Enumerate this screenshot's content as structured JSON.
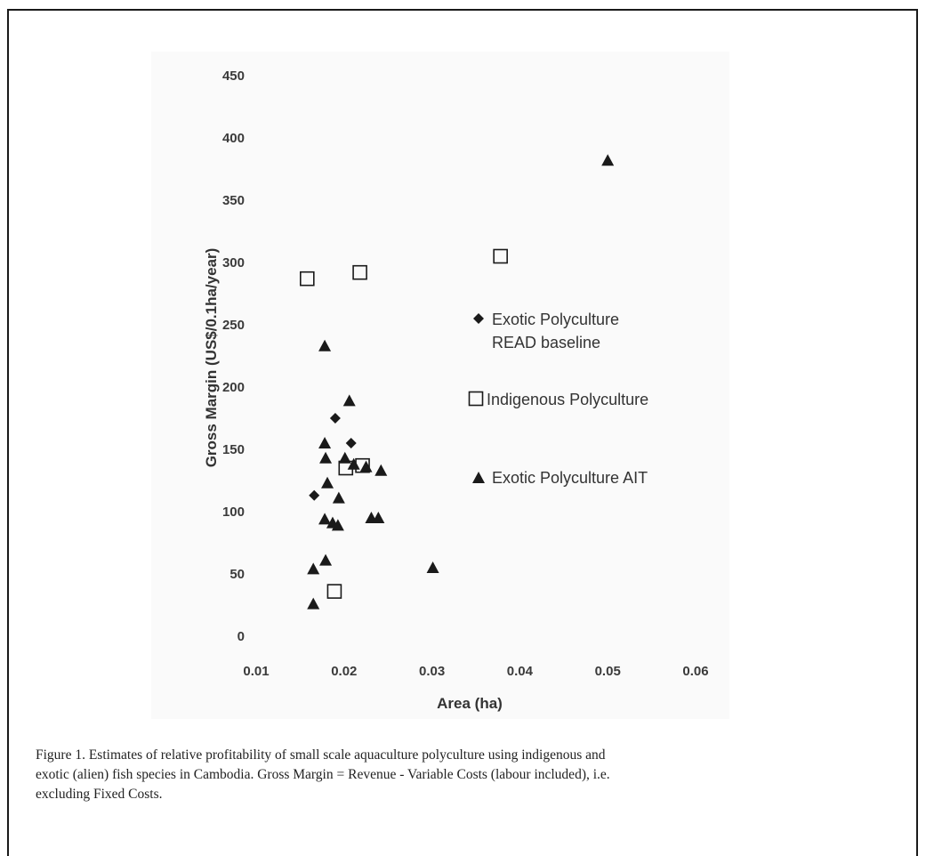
{
  "chart_data": {
    "type": "scatter",
    "xlabel": "Area (ha)",
    "ylabel": "Gross Margin (US$/0.1ha/year)",
    "xlim": [
      0.01,
      0.06
    ],
    "ylim": [
      0,
      450
    ],
    "x_ticks": [
      "0.01",
      "0.02",
      "0.03",
      "0.04",
      "0.05",
      "0.06"
    ],
    "y_ticks": [
      "0",
      "50",
      "100",
      "150",
      "200",
      "250",
      "300",
      "350",
      "400",
      "450"
    ],
    "grid": false,
    "legend_position": "right",
    "series": [
      {
        "name": "Exotic Polyculture READ baseline",
        "name_lines": [
          "Exotic Polyculture",
          "READ baseline"
        ],
        "marker": "diamond",
        "color": "#1a1a1a",
        "points": [
          {
            "x": 0.0166,
            "y": 113
          },
          {
            "x": 0.019,
            "y": 175
          },
          {
            "x": 0.0208,
            "y": 155
          }
        ]
      },
      {
        "name": "Indigenous Polyculture",
        "name_lines": [
          "Indigenous Polyculture"
        ],
        "marker": "square-open",
        "color": "#1a1a1a",
        "points": [
          {
            "x": 0.0158,
            "y": 287
          },
          {
            "x": 0.0218,
            "y": 292
          },
          {
            "x": 0.0378,
            "y": 305
          },
          {
            "x": 0.0202,
            "y": 135
          },
          {
            "x": 0.0221,
            "y": 137
          },
          {
            "x": 0.0189,
            "y": 36
          }
        ]
      },
      {
        "name": "Exotic Polyculture AIT",
        "name_lines": [
          "Exotic Polyculture AIT"
        ],
        "marker": "triangle",
        "color": "#1a1a1a",
        "points": [
          {
            "x": 0.05,
            "y": 382
          },
          {
            "x": 0.0178,
            "y": 233
          },
          {
            "x": 0.0206,
            "y": 189
          },
          {
            "x": 0.0178,
            "y": 155
          },
          {
            "x": 0.0179,
            "y": 143
          },
          {
            "x": 0.0201,
            "y": 143
          },
          {
            "x": 0.0211,
            "y": 138
          },
          {
            "x": 0.0225,
            "y": 136
          },
          {
            "x": 0.0242,
            "y": 133
          },
          {
            "x": 0.0181,
            "y": 123
          },
          {
            "x": 0.0194,
            "y": 111
          },
          {
            "x": 0.0178,
            "y": 94
          },
          {
            "x": 0.0187,
            "y": 91
          },
          {
            "x": 0.0193,
            "y": 89
          },
          {
            "x": 0.0231,
            "y": 95
          },
          {
            "x": 0.0239,
            "y": 95
          },
          {
            "x": 0.0165,
            "y": 54
          },
          {
            "x": 0.0179,
            "y": 61
          },
          {
            "x": 0.0301,
            "y": 55
          },
          {
            "x": 0.0165,
            "y": 26
          }
        ]
      }
    ]
  },
  "caption": {
    "lines": [
      "Figure 1. Estimates of relative profitability of small scale aquaculture polyculture using indigenous and",
      "exotic (alien) fish species in Cambodia. Gross Margin = Revenue - Variable Costs (labour included), i.e.",
      "excluding Fixed Costs."
    ]
  }
}
